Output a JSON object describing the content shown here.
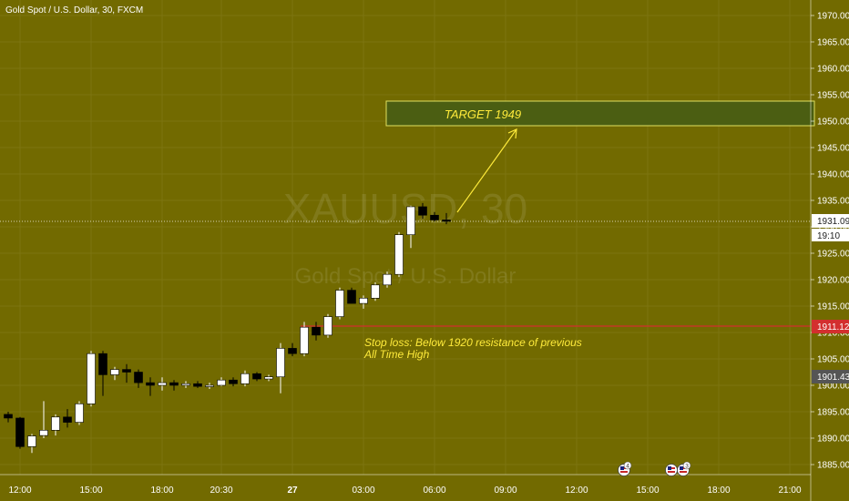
{
  "header": {
    "symbol_title": "Gold Spot / U.S. Dollar, 30, FXCM"
  },
  "watermark": {
    "ticker": "XAUUSD, 30",
    "name": "Gold Spot / U.S. Dollar"
  },
  "colors": {
    "background": "#726a00",
    "candle_up": "#ffffff",
    "candle_down": "#000000",
    "axis_text": "#ffffff",
    "grid": "#7c7410",
    "target_box_fill": "#4b5e12",
    "target_box_border": "#e0e060",
    "annotation_text": "#ffeb3b",
    "stop_line": "#d32f2f",
    "price_tag_bg": "#ffffff",
    "price_tag_text": "#222222"
  },
  "annotations": {
    "target_label": "TARGET 1949",
    "stop_loss_line1": "Stop loss: Below 1920 resistance of previous",
    "stop_loss_line2": "All Time High"
  },
  "price_tags": {
    "last_price": "1931.09",
    "countdown": "19:10",
    "stop_price": "1911.12",
    "low_marker": "1901.43"
  },
  "event_markers": [
    {
      "icon": "us-flag-icon",
      "badge": "4"
    },
    {
      "icon": "us-flag-icon",
      "badge": ""
    },
    {
      "icon": "us-flag-icon",
      "badge": "3"
    }
  ],
  "chart_data": {
    "type": "candlestick",
    "title": "Gold Spot / U.S. Dollar, 30, FXCM",
    "ylim": [
      1883,
      1973
    ],
    "y_ticks": [
      1970,
      1965,
      1960,
      1955,
      1950,
      1945,
      1940,
      1935,
      1930,
      1925,
      1920,
      1915,
      1910,
      1905,
      1900,
      1895,
      1890,
      1885
    ],
    "x_ticks": [
      {
        "label": "12:00",
        "idx": 1
      },
      {
        "label": "15:00",
        "idx": 7
      },
      {
        "label": "18:00",
        "idx": 13
      },
      {
        "label": "20:30",
        "idx": 18
      },
      {
        "label": "27",
        "idx": 24
      },
      {
        "label": "03:00",
        "idx": 30
      },
      {
        "label": "06:00",
        "idx": 36
      },
      {
        "label": "09:00",
        "idx": 42
      },
      {
        "label": "12:00",
        "idx": 48
      },
      {
        "label": "15:00",
        "idx": 54
      },
      {
        "label": "18:00",
        "idx": 60
      },
      {
        "label": "21:00",
        "idx": 66
      }
    ],
    "candles": [
      {
        "o": 1894.5,
        "h": 1895.0,
        "l": 1893.0,
        "c": 1893.8
      },
      {
        "o": 1893.8,
        "h": 1894.0,
        "l": 1888.0,
        "c": 1888.4
      },
      {
        "o": 1888.4,
        "h": 1890.8,
        "l": 1887.2,
        "c": 1890.4
      },
      {
        "o": 1890.5,
        "h": 1897.0,
        "l": 1890.0,
        "c": 1891.5
      },
      {
        "o": 1891.5,
        "h": 1894.5,
        "l": 1890.5,
        "c": 1894.0
      },
      {
        "o": 1894.0,
        "h": 1895.5,
        "l": 1892.0,
        "c": 1893.0
      },
      {
        "o": 1893.0,
        "h": 1897.0,
        "l": 1892.5,
        "c": 1896.5
      },
      {
        "o": 1896.5,
        "h": 1906.5,
        "l": 1896.0,
        "c": 1906.0
      },
      {
        "o": 1906.0,
        "h": 1906.5,
        "l": 1898.0,
        "c": 1902.0
      },
      {
        "o": 1902.0,
        "h": 1903.5,
        "l": 1901.0,
        "c": 1903.0
      },
      {
        "o": 1903.0,
        "h": 1904.0,
        "l": 1900.5,
        "c": 1902.5
      },
      {
        "o": 1902.5,
        "h": 1903.0,
        "l": 1899.5,
        "c": 1900.5
      },
      {
        "o": 1900.5,
        "h": 1901.5,
        "l": 1898.0,
        "c": 1900.0
      },
      {
        "o": 1900.0,
        "h": 1901.5,
        "l": 1899.0,
        "c": 1900.5
      },
      {
        "o": 1900.5,
        "h": 1901.0,
        "l": 1899.0,
        "c": 1900.0
      },
      {
        "o": 1900.0,
        "h": 1900.8,
        "l": 1899.5,
        "c": 1900.3
      },
      {
        "o": 1900.3,
        "h": 1900.8,
        "l": 1899.5,
        "c": 1899.8
      },
      {
        "o": 1899.8,
        "h": 1900.5,
        "l": 1899.3,
        "c": 1900.0
      },
      {
        "o": 1900.0,
        "h": 1901.5,
        "l": 1899.8,
        "c": 1901.0
      },
      {
        "o": 1901.0,
        "h": 1901.5,
        "l": 1899.8,
        "c": 1900.3
      },
      {
        "o": 1900.3,
        "h": 1902.8,
        "l": 1899.8,
        "c": 1902.2
      },
      {
        "o": 1902.2,
        "h": 1902.5,
        "l": 1900.8,
        "c": 1901.2
      },
      {
        "o": 1901.2,
        "h": 1902.0,
        "l": 1900.8,
        "c": 1901.6
      },
      {
        "o": 1901.6,
        "h": 1908.0,
        "l": 1898.5,
        "c": 1907.0
      },
      {
        "o": 1907.0,
        "h": 1908.0,
        "l": 1905.5,
        "c": 1906.0
      },
      {
        "o": 1906.0,
        "h": 1912.0,
        "l": 1905.5,
        "c": 1911.0
      },
      {
        "o": 1911.0,
        "h": 1912.0,
        "l": 1908.5,
        "c": 1909.5
      },
      {
        "o": 1909.5,
        "h": 1913.5,
        "l": 1909.0,
        "c": 1913.0
      },
      {
        "o": 1913.0,
        "h": 1918.5,
        "l": 1912.5,
        "c": 1918.0
      },
      {
        "o": 1918.0,
        "h": 1918.5,
        "l": 1915.5,
        "c": 1915.5
      },
      {
        "o": 1915.5,
        "h": 1917.0,
        "l": 1914.5,
        "c": 1916.5
      },
      {
        "o": 1916.5,
        "h": 1919.5,
        "l": 1916.0,
        "c": 1919.0
      },
      {
        "o": 1919.0,
        "h": 1921.5,
        "l": 1918.5,
        "c": 1921.0
      },
      {
        "o": 1921.0,
        "h": 1929.0,
        "l": 1920.5,
        "c": 1928.5
      },
      {
        "o": 1928.5,
        "h": 1934.0,
        "l": 1926.0,
        "c": 1933.8
      },
      {
        "o": 1933.8,
        "h": 1934.5,
        "l": 1931.5,
        "c": 1932.2
      },
      {
        "o": 1932.2,
        "h": 1932.8,
        "l": 1931.0,
        "c": 1931.3
      },
      {
        "o": 1931.3,
        "h": 1932.6,
        "l": 1930.5,
        "c": 1931.1
      }
    ]
  }
}
